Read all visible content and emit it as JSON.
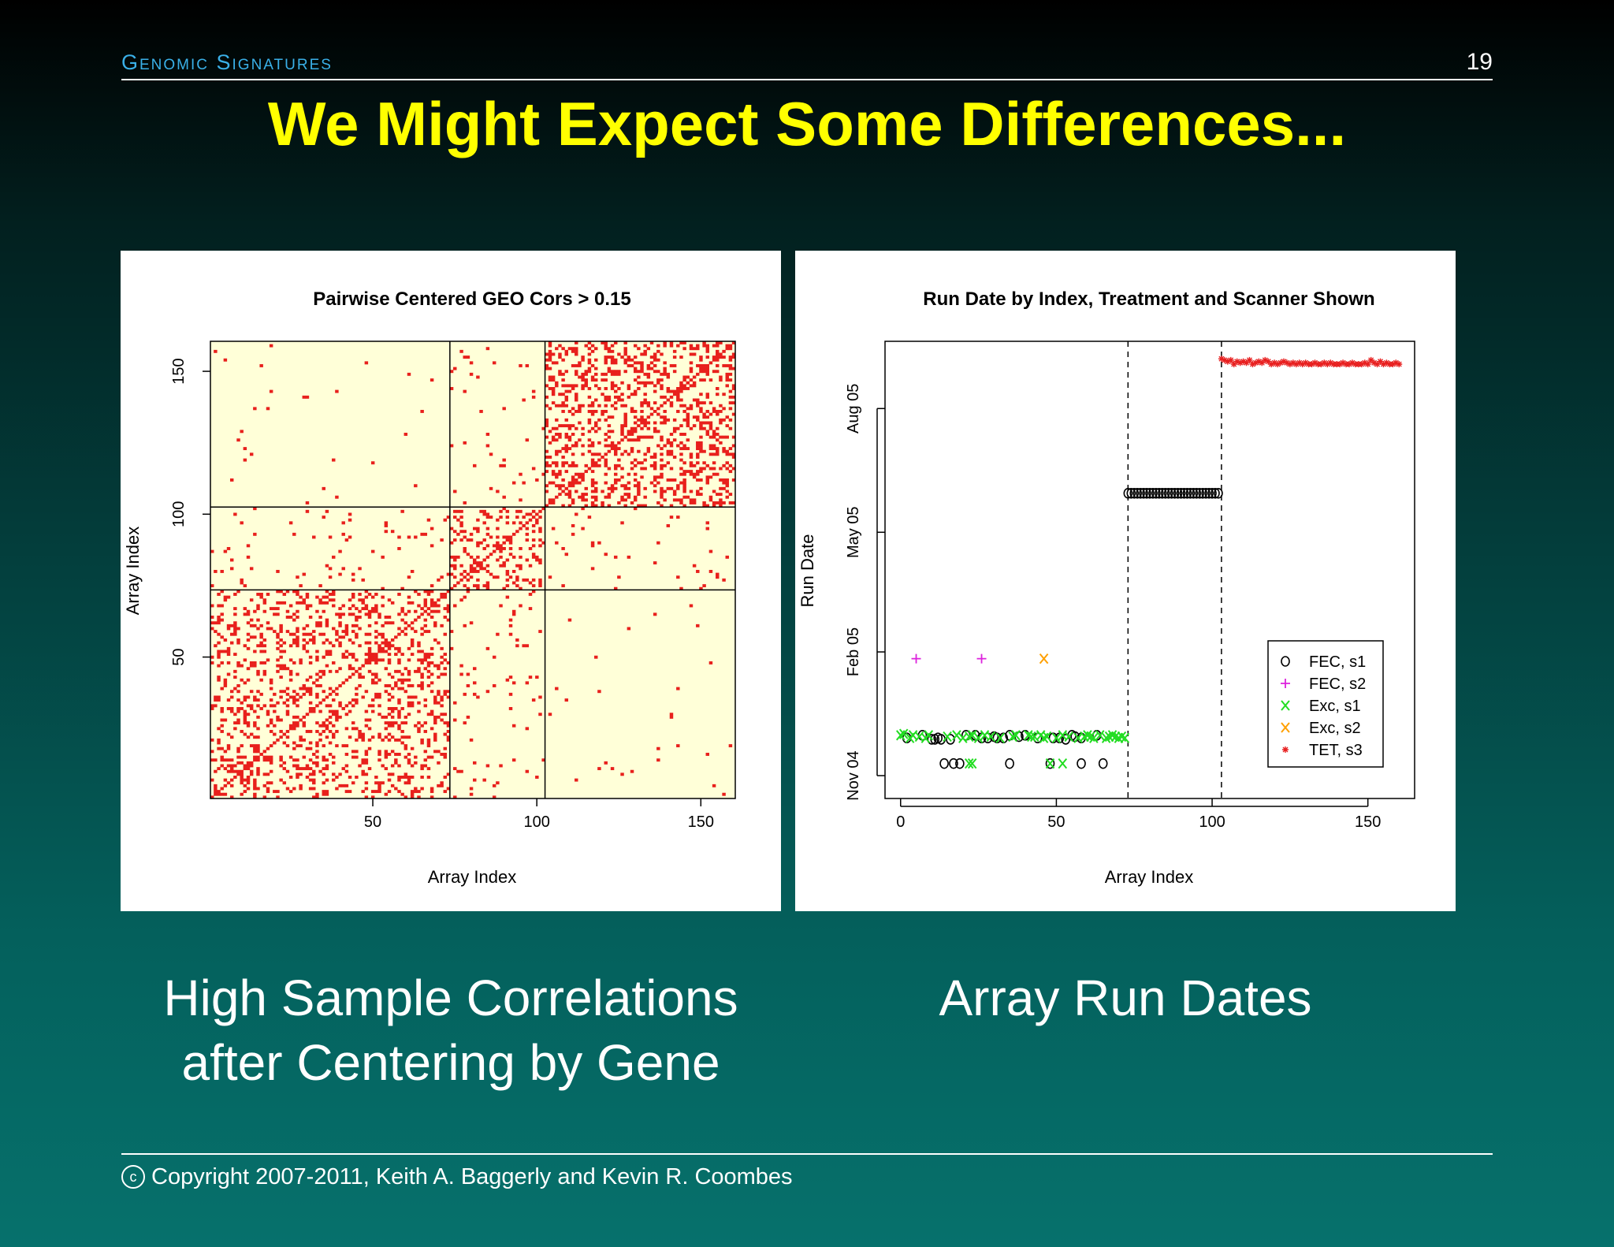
{
  "header": {
    "section": "Genomic Signatures",
    "page_number": "19"
  },
  "title": "We Might Expect Some Differences...",
  "captions": {
    "left": "High Sample Correlations\nafter Centering by Gene",
    "right": "Array Run Dates"
  },
  "footer": {
    "copyright_symbol": "c",
    "copyright": "Copyright 2007-2011, Keith A. Baggerly and Kevin R. Coombes"
  },
  "chart_data": [
    {
      "type": "heatmap",
      "title": "Pairwise Centered GEO Cors > 0.15",
      "xlabel": "Array Index",
      "ylabel": "Array Index",
      "xlim": [
        1,
        160
      ],
      "ylim": [
        1,
        160
      ],
      "xticks": [
        50,
        100,
        150
      ],
      "yticks": [
        50,
        100,
        150
      ],
      "block_boundaries": [
        73,
        102
      ],
      "background_color": "#ffffd8",
      "mark_color": "#e8201c",
      "block_densities": [
        [
          0.22,
          0.03,
          0.005
        ],
        [
          0.03,
          0.18,
          0.02
        ],
        [
          0.005,
          0.02,
          0.28
        ]
      ]
    },
    {
      "type": "scatter",
      "title": "Run Date by Index, Treatment and Scanner Shown",
      "xlabel": "Array Index",
      "ylabel": "Run Date",
      "xlim": [
        -5,
        165
      ],
      "xticks": [
        0,
        50,
        100,
        150
      ],
      "yticks": [
        {
          "label": "Nov 04",
          "date": "2004-11-01"
        },
        {
          "label": "Feb 05",
          "date": "2005-02-01"
        },
        {
          "label": "May 05",
          "date": "2005-05-01"
        },
        {
          "label": "Aug 05",
          "date": "2005-08-01"
        }
      ],
      "ylim": [
        "2004-10-15",
        "2005-09-20"
      ],
      "vlines": [
        73,
        103
      ],
      "legend": {
        "placement": "bottom-right",
        "entries": [
          {
            "symbol": "o",
            "label": "FEC, s1",
            "color": "#000000"
          },
          {
            "symbol": "+",
            "label": "FEC, s2",
            "color": "#dd22dd"
          },
          {
            "symbol": "x",
            "label": "Exc, s1",
            "color": "#22dd22"
          },
          {
            "symbol": "x",
            "label": "Exc, s2",
            "color": "#ffa000"
          },
          {
            "symbol": "*",
            "label": "TET, s3",
            "color": "#e82020"
          }
        ]
      },
      "series": [
        {
          "name": "FEC, s1",
          "x": [
            2,
            7,
            10,
            11,
            12,
            13,
            16,
            21,
            24,
            26,
            28,
            30,
            31,
            33,
            35,
            38,
            40,
            44,
            49,
            51,
            53,
            55,
            56,
            58,
            63,
            14,
            17,
            19,
            35,
            48,
            58,
            65,
            73,
            74,
            75,
            76,
            77,
            78,
            79,
            80,
            81,
            82,
            83,
            84,
            85,
            86,
            87,
            88,
            89,
            90,
            91,
            92,
            93,
            94,
            95,
            96,
            97,
            98,
            99,
            100,
            101,
            102
          ],
          "y": [
            "2004-11-29",
            "2004-12-01",
            "2004-11-28",
            "2004-11-28",
            "2004-11-29",
            "2004-11-28",
            "2004-11-28",
            "2004-12-01",
            "2004-12-01",
            "2004-11-29",
            "2004-11-29",
            "2004-11-30",
            "2004-11-29",
            "2004-11-29",
            "2004-12-01",
            "2004-11-30",
            "2004-12-01",
            "2004-11-29",
            "2004-11-29",
            "2004-11-29",
            "2004-11-28",
            "2004-12-01",
            "2004-11-30",
            "2004-11-29",
            "2004-12-01",
            "2004-11-10",
            "2004-11-10",
            "2004-11-10",
            "2004-11-10",
            "2004-11-10",
            "2004-11-10",
            "2004-11-10",
            "2005-05-30",
            "2005-05-30",
            "2005-05-30",
            "2005-05-30",
            "2005-05-30",
            "2005-05-30",
            "2005-05-30",
            "2005-05-30",
            "2005-05-30",
            "2005-05-30",
            "2005-05-30",
            "2005-05-30",
            "2005-05-30",
            "2005-05-30",
            "2005-05-30",
            "2005-05-30",
            "2005-05-30",
            "2005-05-30",
            "2005-05-30",
            "2005-05-30",
            "2005-05-30",
            "2005-05-30",
            "2005-05-30",
            "2005-05-30",
            "2005-05-30",
            "2005-05-30",
            "2005-05-30",
            "2005-05-30",
            "2005-05-30",
            "2005-05-30"
          ]
        },
        {
          "name": "FEC, s2",
          "x": [
            5,
            26
          ],
          "y": [
            "2005-01-27",
            "2005-01-27"
          ]
        },
        {
          "name": "Exc, s1",
          "x": [
            0,
            1,
            3,
            4,
            6,
            8,
            9,
            15,
            18,
            20,
            22,
            23,
            25,
            27,
            29,
            32,
            36,
            37,
            41,
            42,
            43,
            45,
            46,
            47,
            50,
            52,
            54,
            57,
            59,
            60,
            61,
            62,
            64,
            66,
            67,
            68,
            69,
            70,
            71,
            72,
            22,
            23,
            48,
            52
          ],
          "y": [
            "2004-12-01",
            "2004-12-02",
            "2004-11-29",
            "2004-12-01",
            "2004-11-30",
            "2004-11-29",
            "2004-12-01",
            "2004-11-30",
            "2004-12-01",
            "2004-11-29",
            "2004-11-30",
            "2004-12-01",
            "2004-11-29",
            "2004-12-01",
            "2004-11-30",
            "2004-11-29",
            "2004-11-30",
            "2004-12-01",
            "2004-12-01",
            "2004-11-30",
            "2004-11-30",
            "2004-12-01",
            "2004-11-29",
            "2004-11-30",
            "2004-11-29",
            "2004-12-01",
            "2004-11-30",
            "2004-11-29",
            "2004-11-30",
            "2004-12-01",
            "2004-11-30",
            "2004-11-29",
            "2004-12-01",
            "2004-11-29",
            "2004-11-30",
            "2004-12-01",
            "2004-11-30",
            "2004-11-29",
            "2004-11-30",
            "2004-11-29",
            "2004-11-10",
            "2004-11-10",
            "2004-11-10",
            "2004-11-10"
          ]
        },
        {
          "name": "Exc, s2",
          "x": [
            46
          ],
          "y": [
            "2005-01-27"
          ]
        },
        {
          "name": "TET, s3",
          "x": [
            103,
            104,
            105,
            106,
            107,
            108,
            109,
            110,
            111,
            112,
            113,
            114,
            115,
            116,
            117,
            118,
            119,
            120,
            121,
            122,
            123,
            124,
            125,
            126,
            127,
            128,
            129,
            130,
            131,
            132,
            133,
            134,
            135,
            136,
            137,
            138,
            139,
            140,
            141,
            142,
            143,
            144,
            145,
            146,
            147,
            148,
            149,
            150,
            151,
            152,
            153,
            154,
            155,
            156,
            157,
            158,
            159,
            160
          ],
          "y": [
            "2005-09-07",
            "2005-09-06",
            "2005-09-05",
            "2005-09-06",
            "2005-09-03",
            "2005-09-05",
            "2005-09-04",
            "2005-09-05",
            "2005-09-04",
            "2005-09-06",
            "2005-09-03",
            "2005-09-04",
            "2005-09-05",
            "2005-09-04",
            "2005-09-06",
            "2005-09-05",
            "2005-09-03",
            "2005-09-04",
            "2005-09-03",
            "2005-09-04",
            "2005-09-05",
            "2005-09-04",
            "2005-09-03",
            "2005-09-04",
            "2005-09-03",
            "2005-09-04",
            "2005-09-03",
            "2005-09-04",
            "2005-09-03",
            "2005-09-03",
            "2005-09-04",
            "2005-09-03",
            "2005-09-03",
            "2005-09-04",
            "2005-09-03",
            "2005-09-04",
            "2005-09-03",
            "2005-09-03",
            "2005-09-03",
            "2005-09-04",
            "2005-09-03",
            "2005-09-03",
            "2005-09-04",
            "2005-09-03",
            "2005-09-03",
            "2005-09-03",
            "2005-09-04",
            "2005-09-03",
            "2005-09-06",
            "2005-09-04",
            "2005-09-03",
            "2005-09-05",
            "2005-09-03",
            "2005-09-04",
            "2005-09-03",
            "2005-09-03",
            "2005-09-04",
            "2005-09-03"
          ]
        }
      ]
    }
  ]
}
